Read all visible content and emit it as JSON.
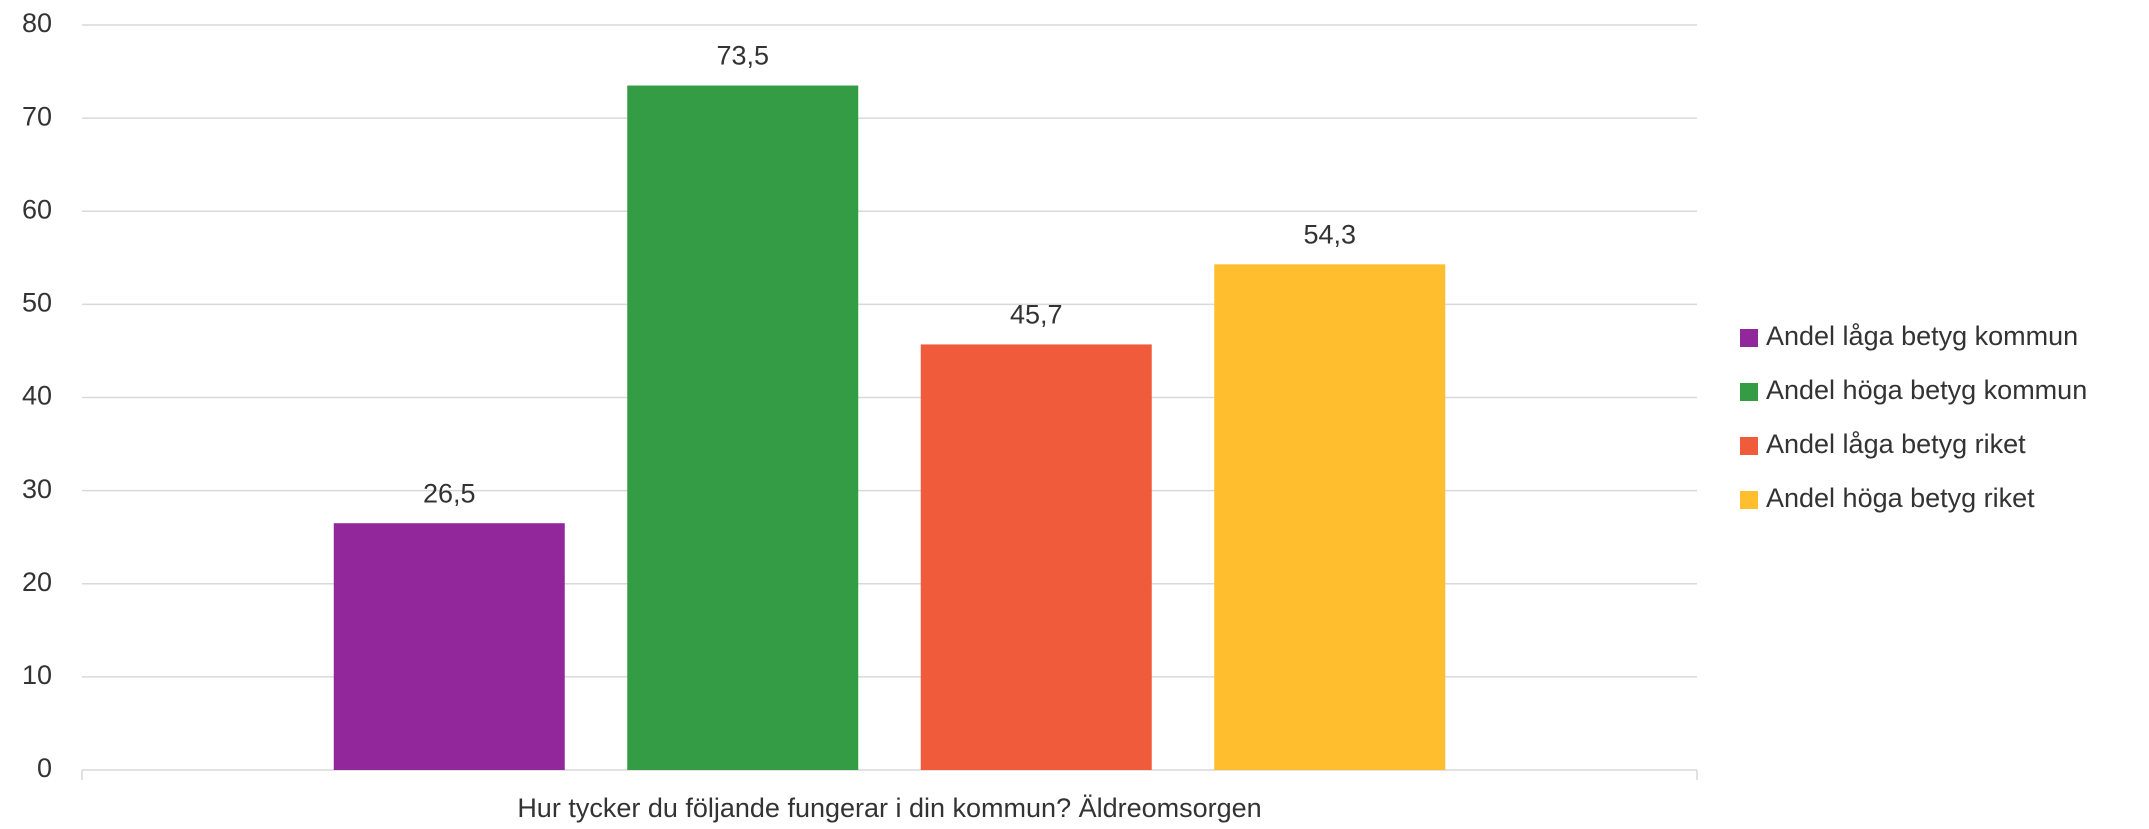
{
  "chart_data": {
    "type": "bar",
    "categories": [
      "Hur tycker du följande fungerar i din kommun? Äldreomsorgen"
    ],
    "series": [
      {
        "name": "Andel låga betyg kommun",
        "color": "#92279b",
        "values": [
          26.5
        ],
        "value_labels": [
          "26,5"
        ]
      },
      {
        "name": "Andel höga betyg kommun",
        "color": "#339c45",
        "values": [
          73.5
        ],
        "value_labels": [
          "73,5"
        ]
      },
      {
        "name": "Andel låga betyg riket",
        "color": "#f05b3b",
        "values": [
          45.7
        ],
        "value_labels": [
          "45,7"
        ]
      },
      {
        "name": "Andel höga betyg riket",
        "color": "#ffbe2e",
        "values": [
          54.3
        ],
        "value_labels": [
          "54,3"
        ]
      }
    ],
    "ylim": [
      0,
      80
    ],
    "yticks": [
      0,
      10,
      20,
      30,
      40,
      50,
      60,
      70,
      80
    ],
    "grid": true,
    "legend": "right"
  }
}
